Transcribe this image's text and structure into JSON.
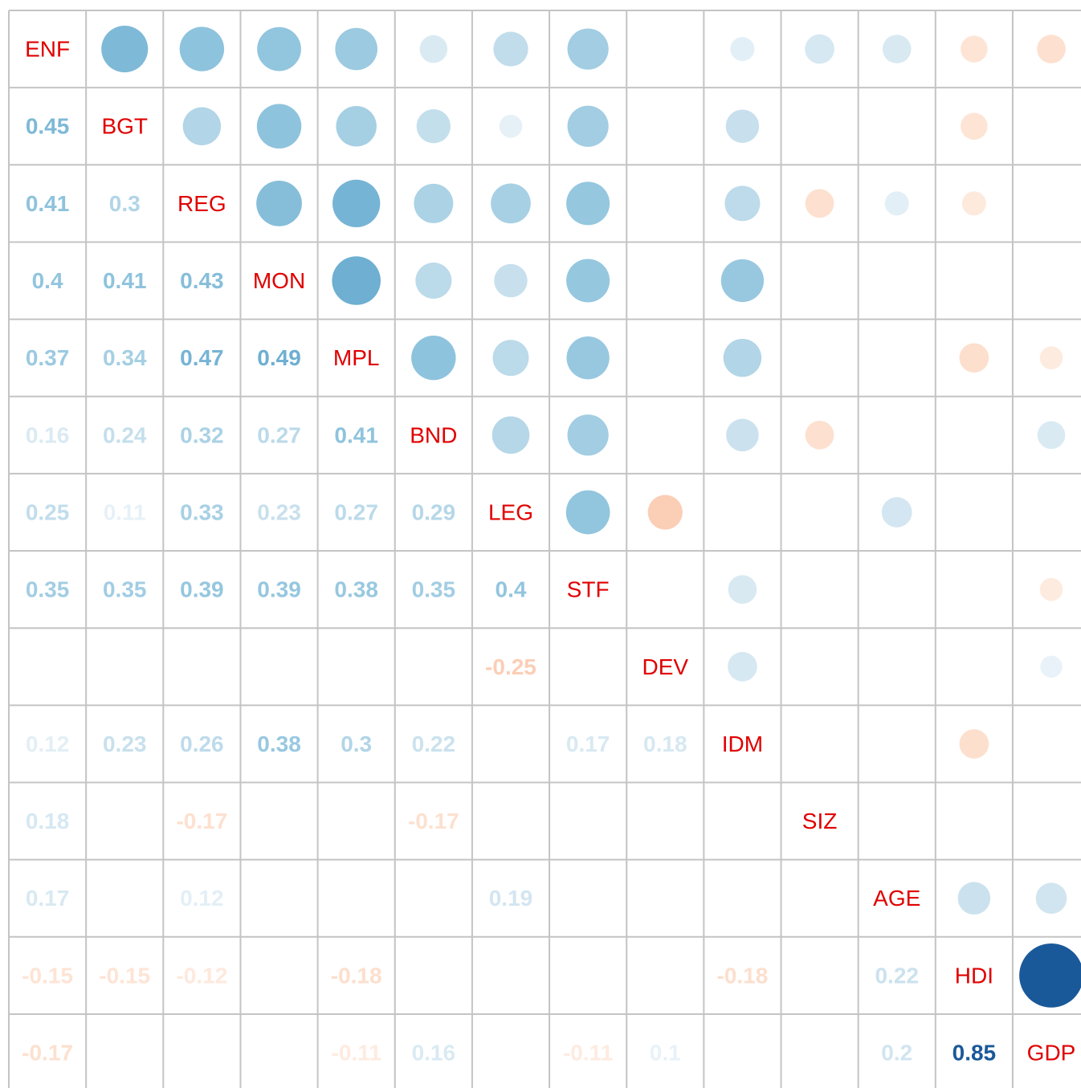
{
  "chart_data": {
    "type": "corrplot",
    "labels": [
      "ENF",
      "BGT",
      "REG",
      "MON",
      "MPL",
      "BND",
      "LEG",
      "STF",
      "DEV",
      "IDM",
      "SIZ",
      "AGE",
      "HDI",
      "GDP"
    ],
    "values": [
      [],
      [
        0.45
      ],
      [
        0.41,
        0.3
      ],
      [
        0.4,
        0.41,
        0.43
      ],
      [
        0.37,
        0.34,
        0.47,
        0.49
      ],
      [
        0.16,
        0.24,
        0.32,
        0.27,
        0.41
      ],
      [
        0.25,
        0.11,
        0.33,
        0.23,
        0.27,
        0.29
      ],
      [
        0.35,
        0.35,
        0.39,
        0.39,
        0.38,
        0.35,
        0.4
      ],
      [
        null,
        null,
        null,
        null,
        null,
        null,
        -0.25,
        null
      ],
      [
        0.12,
        0.23,
        0.26,
        0.38,
        0.3,
        0.22,
        null,
        0.17,
        0.18
      ],
      [
        0.18,
        null,
        -0.17,
        null,
        null,
        -0.17,
        null,
        null,
        null,
        null
      ],
      [
        0.17,
        null,
        0.12,
        null,
        null,
        null,
        0.19,
        null,
        null,
        null,
        null
      ],
      [
        -0.15,
        -0.15,
        -0.12,
        null,
        -0.18,
        null,
        null,
        null,
        null,
        -0.18,
        null,
        0.22
      ],
      [
        -0.17,
        null,
        null,
        null,
        -0.11,
        0.16,
        null,
        -0.11,
        0.1,
        null,
        null,
        0.2,
        0.85
      ]
    ],
    "clim": [
      -1,
      1
    ],
    "colormap": [
      "#67001F",
      "#B2182B",
      "#D6604D",
      "#F4A582",
      "#FDDBC7",
      "#FFFFFF",
      "#D1E5F0",
      "#92C5DE",
      "#4393C3",
      "#2166AC",
      "#053061"
    ],
    "label_color": "#e00000"
  }
}
